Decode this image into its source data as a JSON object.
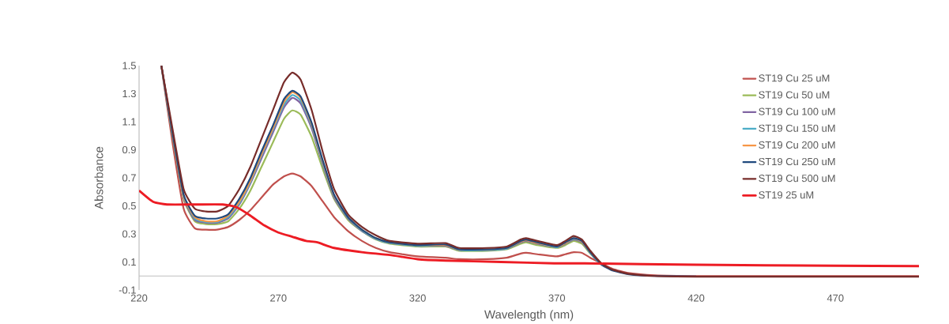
{
  "chart_data": {
    "type": "line",
    "xlabel": "Wavelength (nm)",
    "ylabel": "Absorbance",
    "xlim": [
      220,
      500
    ],
    "ylim": [
      -0.1,
      1.5
    ],
    "xticks": [
      220,
      270,
      320,
      370,
      420,
      470
    ],
    "yticks": [
      -0.1,
      0.1,
      0.3,
      0.5,
      0.7,
      0.9,
      1.1,
      1.3,
      1.5
    ],
    "legend": "top right",
    "marker": "none",
    "line_style": "solid",
    "grid": false,
    "x": [
      228,
      232,
      236,
      240,
      244,
      248,
      252,
      256,
      260,
      264,
      268,
      272,
      275,
      278,
      282,
      286,
      290,
      295,
      300,
      305,
      310,
      320,
      330,
      335,
      345,
      352,
      357,
      359,
      363,
      370,
      373,
      376,
      379,
      382,
      386,
      390,
      396,
      405,
      420,
      450,
      500
    ],
    "series": [
      {
        "name": "ST19 Cu 25 uM",
        "color": "#c0504d",
        "values": [
          1.5,
          0.95,
          0.48,
          0.34,
          0.33,
          0.33,
          0.35,
          0.4,
          0.47,
          0.56,
          0.65,
          0.71,
          0.73,
          0.71,
          0.64,
          0.53,
          0.42,
          0.32,
          0.25,
          0.2,
          0.17,
          0.14,
          0.13,
          0.12,
          0.12,
          0.13,
          0.16,
          0.165,
          0.155,
          0.14,
          0.155,
          0.17,
          0.165,
          0.13,
          0.09,
          0.05,
          0.02,
          0.005,
          0.0,
          0.0,
          0.0
        ]
      },
      {
        "name": "ST19 Cu 50 uM",
        "color": "#9bbb59",
        "values": [
          1.5,
          1.0,
          0.55,
          0.39,
          0.37,
          0.37,
          0.39,
          0.48,
          0.61,
          0.78,
          0.95,
          1.12,
          1.18,
          1.15,
          0.99,
          0.76,
          0.55,
          0.4,
          0.32,
          0.26,
          0.23,
          0.21,
          0.21,
          0.18,
          0.18,
          0.19,
          0.23,
          0.24,
          0.22,
          0.2,
          0.22,
          0.25,
          0.23,
          0.16,
          0.08,
          null,
          null,
          null,
          null,
          null,
          null
        ]
      },
      {
        "name": "ST19 Cu 100 uM",
        "color": "#8064a2",
        "values": [
          1.5,
          1.01,
          0.56,
          0.4,
          0.38,
          0.38,
          0.41,
          0.51,
          0.66,
          0.84,
          1.02,
          1.2,
          1.27,
          1.23,
          1.05,
          0.79,
          0.56,
          0.41,
          0.32,
          0.265,
          0.235,
          0.215,
          0.215,
          0.185,
          0.185,
          0.195,
          0.24,
          0.25,
          0.23,
          0.205,
          0.23,
          0.26,
          0.24,
          0.165,
          0.08,
          0.04,
          null,
          null,
          null,
          null,
          null
        ]
      },
      {
        "name": "ST19 Cu 150 uM",
        "color": "#4bacc6",
        "values": [
          1.5,
          1.01,
          0.57,
          0.41,
          0.385,
          0.385,
          0.42,
          0.52,
          0.67,
          0.86,
          1.04,
          1.22,
          1.29,
          1.25,
          1.07,
          0.8,
          0.57,
          0.415,
          0.325,
          0.265,
          0.235,
          0.215,
          0.22,
          0.185,
          0.185,
          0.195,
          0.245,
          0.255,
          0.235,
          0.205,
          0.235,
          0.265,
          0.245,
          0.165,
          0.082,
          0.04,
          null,
          null,
          null,
          null,
          null
        ]
      },
      {
        "name": "ST19 Cu 200 uM",
        "color": "#f79646",
        "values": [
          1.5,
          1.02,
          0.57,
          0.42,
          0.39,
          0.39,
          0.43,
          0.53,
          0.68,
          0.87,
          1.05,
          1.24,
          1.31,
          1.27,
          1.08,
          0.81,
          0.575,
          0.42,
          0.33,
          0.27,
          0.24,
          0.22,
          0.22,
          0.19,
          0.19,
          0.2,
          0.245,
          0.255,
          0.235,
          0.21,
          0.235,
          0.27,
          0.245,
          0.17,
          0.085,
          0.04,
          null,
          null,
          null,
          null,
          null
        ]
      },
      {
        "name": "ST19 Cu 250 uM",
        "color": "#1f497d",
        "values": [
          1.5,
          1.02,
          0.58,
          0.43,
          0.41,
          0.41,
          0.44,
          0.55,
          0.7,
          0.89,
          1.07,
          1.26,
          1.32,
          1.28,
          1.09,
          0.82,
          0.58,
          0.42,
          0.33,
          0.27,
          0.24,
          0.22,
          0.225,
          0.19,
          0.19,
          0.2,
          0.25,
          0.26,
          0.24,
          0.21,
          0.24,
          0.27,
          0.25,
          0.17,
          0.085,
          0.04,
          0.012,
          0.0,
          -0.004,
          null,
          null
        ]
      },
      {
        "name": "ST19 Cu 500 uM",
        "color": "#772c2a",
        "values": [
          1.5,
          1.05,
          0.62,
          0.48,
          0.46,
          0.46,
          0.5,
          0.62,
          0.78,
          0.98,
          1.18,
          1.38,
          1.45,
          1.4,
          1.18,
          0.88,
          0.62,
          0.44,
          0.35,
          0.29,
          0.25,
          0.23,
          0.235,
          0.2,
          0.2,
          0.21,
          0.26,
          0.27,
          0.25,
          0.22,
          0.25,
          0.285,
          0.26,
          0.18,
          0.09,
          0.045,
          0.015,
          0.0,
          -0.005,
          -0.005,
          -0.005
        ]
      },
      {
        "name": "ST19 25 uM",
        "color": "#ed1c24",
        "x": [
          220,
          225,
          230,
          240,
          250,
          255,
          260,
          265,
          270,
          275,
          280,
          284,
          290,
          300,
          310,
          320,
          330,
          350,
          369,
          380,
          420,
          470,
          500
        ],
        "values": [
          0.61,
          0.53,
          0.51,
          0.51,
          0.51,
          0.49,
          0.43,
          0.36,
          0.31,
          0.28,
          0.25,
          0.24,
          0.2,
          0.17,
          0.15,
          0.12,
          0.11,
          0.1,
          0.09,
          0.09,
          0.08,
          0.073,
          0.07
        ]
      }
    ]
  }
}
